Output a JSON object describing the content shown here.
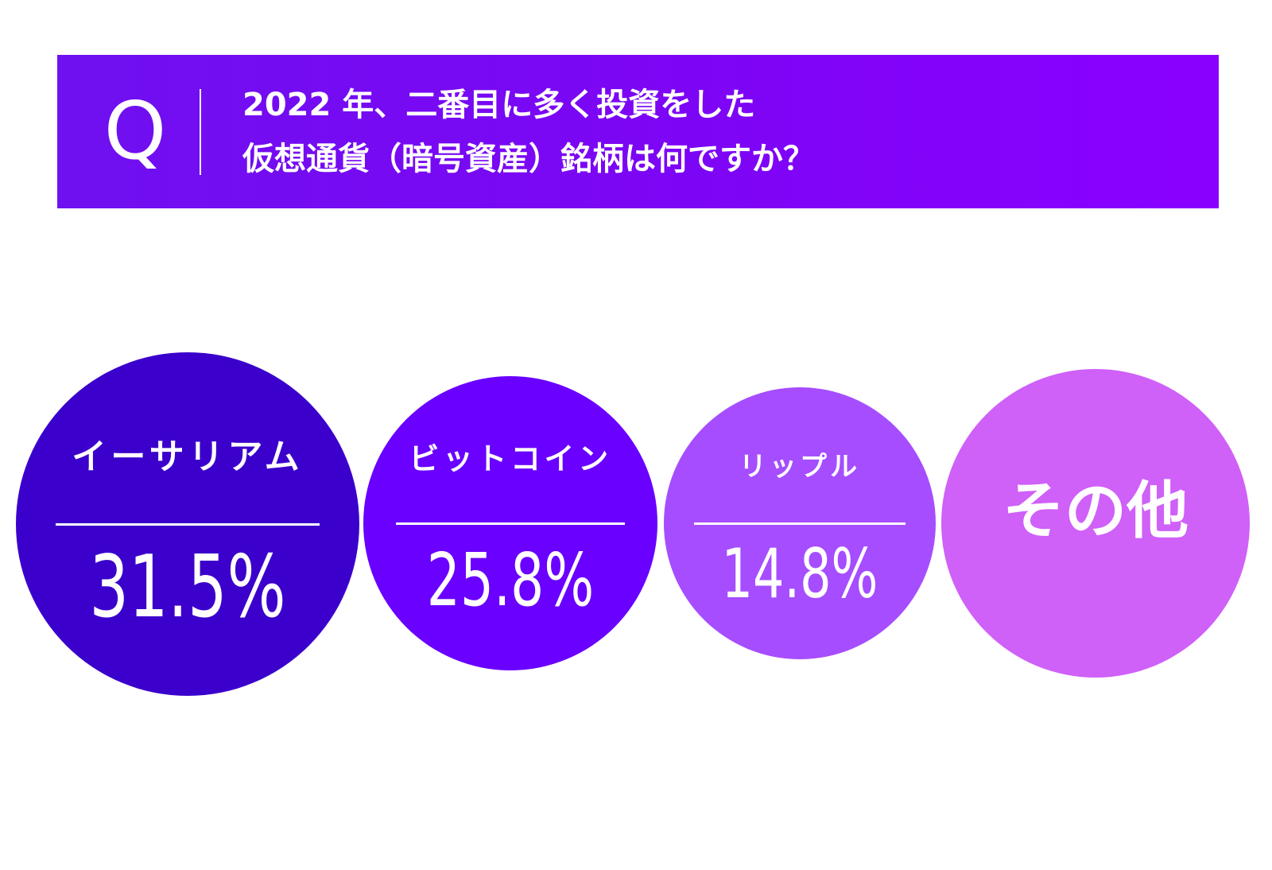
{
  "header": {
    "q_mark": "Q",
    "question_line1": "2022 年、二番目に多く投資をした",
    "question_line2": "仮想通貨（暗号資産）銘柄は何ですか？"
  },
  "chart_data": {
    "type": "bubble",
    "unit": "%",
    "items": [
      {
        "label": "イーサリアム",
        "value": 31.5,
        "display": "31.5%",
        "color": "#3b00cc"
      },
      {
        "label": "ビットコイン",
        "value": 25.8,
        "display": "25.8%",
        "color": "#6a00ff"
      },
      {
        "label": "リップル",
        "value": 14.8,
        "display": "14.8%",
        "color": "#a64dff"
      },
      {
        "label": "その他",
        "value": null,
        "display": "",
        "color": "#cf60f8"
      }
    ]
  }
}
